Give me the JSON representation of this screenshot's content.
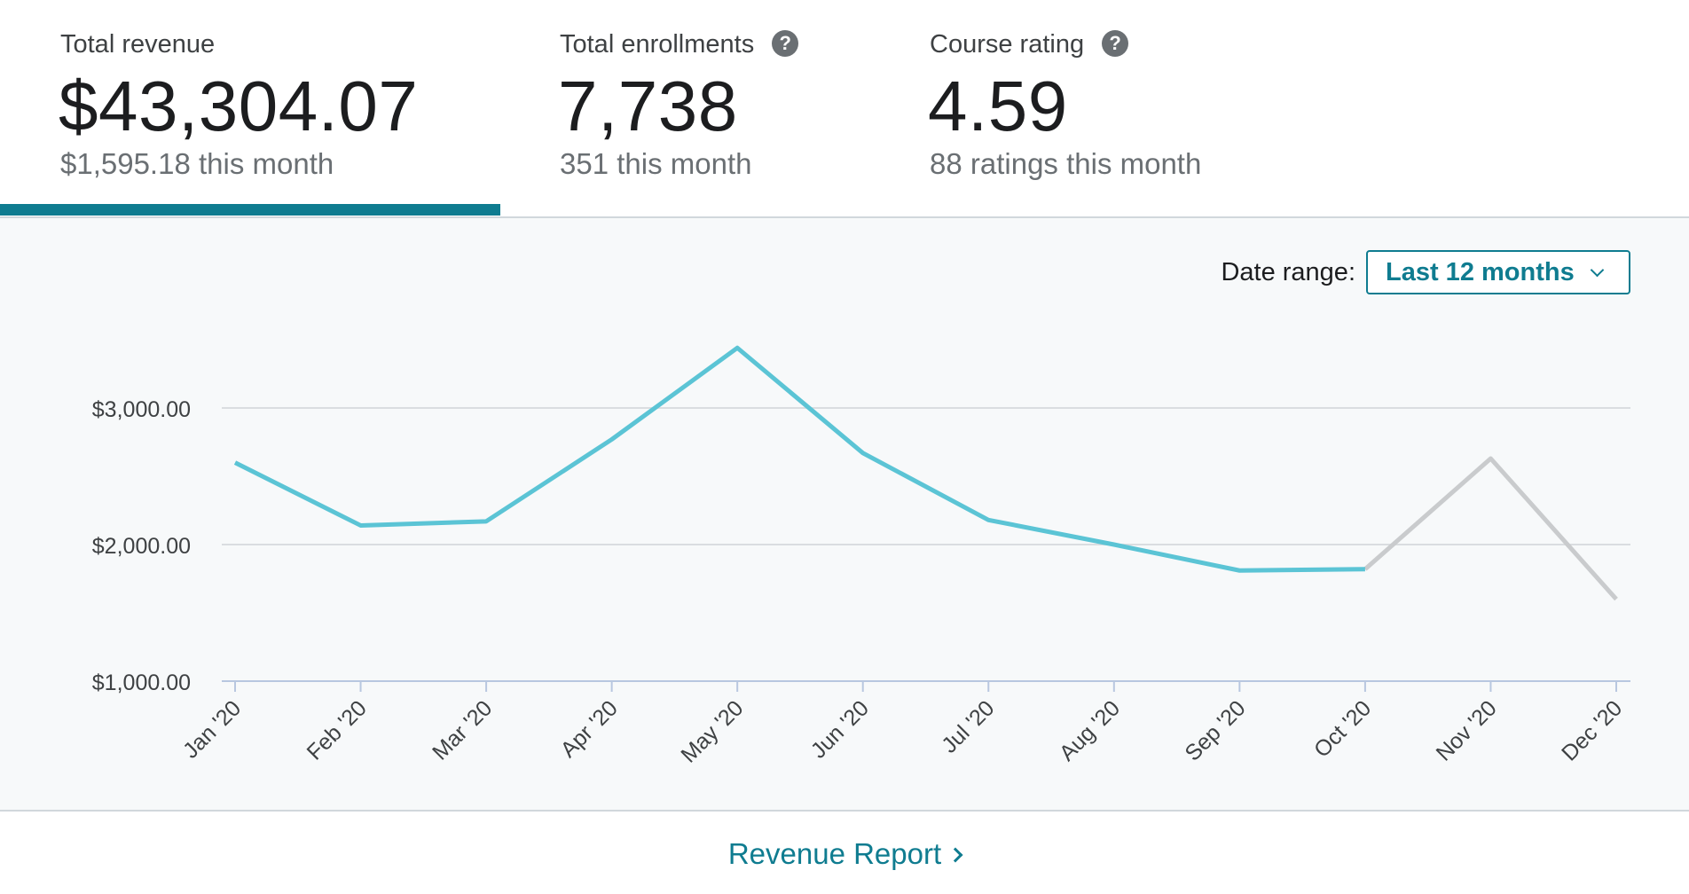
{
  "stats": [
    {
      "label": "Total revenue",
      "value": "$43,304.07",
      "sub": "$1,595.18 this month",
      "help": false,
      "active": true
    },
    {
      "label": "Total enrollments",
      "value": "7,738",
      "sub": "351 this month",
      "help": true,
      "active": false
    },
    {
      "label": "Course rating",
      "value": "4.59",
      "sub": "88 ratings this month",
      "help": true,
      "active": false
    }
  ],
  "date_range": {
    "label": "Date range:",
    "selected": "Last 12 months"
  },
  "footer": {
    "link_label": "Revenue Report"
  },
  "icons": {
    "help": "question-circle-icon",
    "dropdown": "chevron-down-icon",
    "link_arrow": "chevron-right-icon"
  },
  "colors": {
    "accent": "#0f7c90",
    "line_actual": "#5bc4d5",
    "line_partial": "#c9cbcd"
  },
  "chart_data": {
    "type": "line",
    "categories": [
      "Jan '20",
      "Feb '20",
      "Mar '20",
      "Apr '20",
      "May '20",
      "Jun '20",
      "Jul '20",
      "Aug '20",
      "Sep '20",
      "Oct '20",
      "Nov '20",
      "Dec '20"
    ],
    "series": [
      {
        "values": [
          2600,
          2140,
          2170,
          2770,
          3440,
          2670,
          2180,
          2000,
          1810,
          1820,
          2630,
          1600
        ]
      }
    ],
    "highlighted_segment_end_index": 9,
    "y_ticks": [
      "$1,000.00",
      "$2,000.00",
      "$3,000.00"
    ],
    "y_tick_values": [
      1000,
      2000,
      3000
    ],
    "ylim": [
      1000,
      3570
    ],
    "grid": true,
    "legend": false
  }
}
